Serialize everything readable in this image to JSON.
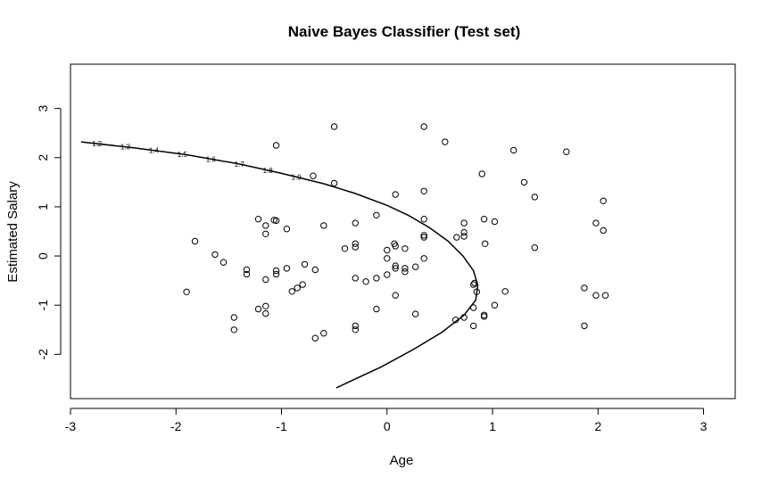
{
  "chart_data": {
    "type": "scatter",
    "title": "Naive Bayes  Classifier (Test set)",
    "xlabel": "Age",
    "ylabel": "Estimated Salary",
    "xlim": [
      -3,
      3.3
    ],
    "ylim": [
      -2.9,
      3.9
    ],
    "xticks": [
      -3,
      -2,
      -1,
      0,
      1,
      2,
      3
    ],
    "yticks": [
      -2,
      -1,
      0,
      1,
      2,
      3
    ],
    "grid": false,
    "legend": "none",
    "series": [
      {
        "marker": "open-circle",
        "x": [
          -0.5,
          0.35,
          0.55,
          -1.05,
          1.2,
          1.7,
          -0.7,
          -0.5,
          0.35,
          0.9,
          1.3,
          1.4,
          0.08,
          2.05,
          -1.22,
          -1.07,
          -0.95,
          -0.6,
          -0.3,
          0.35,
          0.73,
          0.92,
          1.02,
          1.98,
          -0.1,
          -1.15,
          -1.15,
          -1.05,
          -1.82,
          -1.63,
          -1.55,
          -0.4,
          -0.3,
          -0.3,
          0.0,
          0.07,
          0.08,
          0.17,
          0.35,
          0.35,
          0.66,
          0.73,
          0.73,
          0.93,
          1.4,
          2.05,
          -0.78,
          -0.68,
          -1.33,
          -1.33,
          -1.05,
          -1.05,
          -1.15,
          -0.85,
          -0.95,
          -0.9,
          -0.8,
          -0.3,
          -0.2,
          -0.1,
          0.0,
          0.0,
          0.08,
          0.08,
          0.17,
          0.17,
          0.27,
          0.35,
          -1.9,
          -1.45,
          -1.45,
          -1.22,
          -1.15,
          -1.15,
          -0.1,
          -0.3,
          -0.3,
          -0.6,
          -0.68,
          0.08,
          0.27,
          0.65,
          0.73,
          0.82,
          0.82,
          0.83,
          0.82,
          0.92,
          0.92,
          1.02,
          1.12,
          1.87,
          1.87,
          1.98,
          2.07,
          0.85
        ],
        "y": [
          2.63,
          2.63,
          2.32,
          2.25,
          2.15,
          2.12,
          1.63,
          1.48,
          1.32,
          1.67,
          1.5,
          1.2,
          1.25,
          1.12,
          0.75,
          0.73,
          0.55,
          0.62,
          0.67,
          0.75,
          0.67,
          0.75,
          0.7,
          0.67,
          0.83,
          0.62,
          0.45,
          0.72,
          0.3,
          0.03,
          -0.13,
          0.15,
          0.25,
          0.18,
          0.12,
          0.25,
          0.2,
          0.15,
          0.42,
          0.38,
          0.38,
          0.48,
          0.4,
          0.25,
          0.17,
          0.52,
          -0.17,
          -0.28,
          -0.28,
          -0.37,
          -0.3,
          -0.37,
          -0.48,
          -0.65,
          -0.25,
          -0.72,
          -0.58,
          -0.45,
          -0.52,
          -0.45,
          -0.05,
          -0.38,
          -0.2,
          -0.8,
          -0.25,
          -0.32,
          -0.22,
          -0.05,
          -0.73,
          -1.25,
          -1.5,
          -1.08,
          -1.02,
          -1.17,
          -1.08,
          -1.42,
          -1.5,
          -1.57,
          -1.67,
          -0.25,
          -1.18,
          -1.3,
          -1.25,
          -1.05,
          -1.42,
          -0.55,
          -0.58,
          -1.2,
          -1.23,
          -1.0,
          -0.72,
          -0.65,
          -1.42,
          -0.8,
          -0.8,
          -0.73
        ]
      }
    ],
    "boundary": {
      "style": "contour",
      "points": [
        [
          -2.9,
          2.32
        ],
        [
          -2.4,
          2.2
        ],
        [
          -1.9,
          2.06
        ],
        [
          -1.4,
          1.87
        ],
        [
          -1.0,
          1.68
        ],
        [
          -0.6,
          1.47
        ],
        [
          -0.3,
          1.27
        ],
        [
          0.0,
          1.03
        ],
        [
          0.2,
          0.83
        ],
        [
          0.4,
          0.58
        ],
        [
          0.58,
          0.3
        ],
        [
          0.72,
          0.0
        ],
        [
          0.82,
          -0.3
        ],
        [
          0.86,
          -0.6
        ],
        [
          0.84,
          -0.9
        ],
        [
          0.73,
          -1.2
        ],
        [
          0.52,
          -1.55
        ],
        [
          0.25,
          -1.9
        ],
        [
          -0.05,
          -2.25
        ],
        [
          -0.35,
          -2.55
        ],
        [
          -0.48,
          -2.68
        ]
      ],
      "labels": [
        "1.2",
        "1.3",
        "1.4",
        "1.5",
        "1.6",
        "1.7",
        "1.8",
        "1.9"
      ]
    }
  }
}
